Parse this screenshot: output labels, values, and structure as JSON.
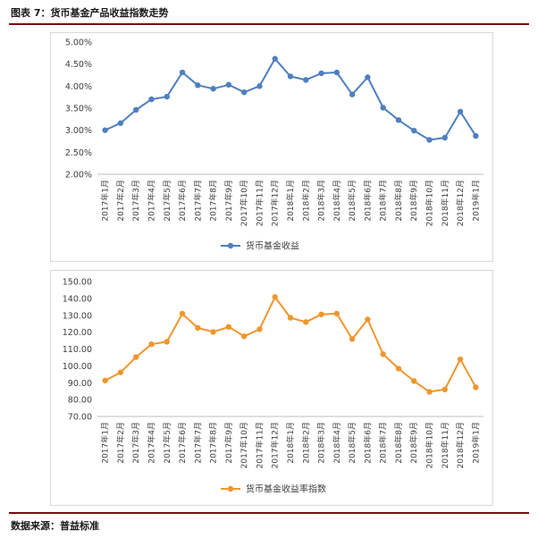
{
  "figure_title": "图表 7：货币基金产品收益指数走势",
  "source_text": "数据来源：普益标准",
  "chart_data": [
    {
      "type": "line",
      "categories": [
        "2017年1月",
        "2017年2月",
        "2017年3月",
        "2017年4月",
        "2017年5月",
        "2017年6月",
        "2017年7月",
        "2017年8月",
        "2017年9月",
        "2017年10月",
        "2017年11月",
        "2017年12月",
        "2018年1月",
        "2018年2月",
        "2018年3月",
        "2018年4月",
        "2018年5月",
        "2018年6月",
        "2018年7月",
        "2018年8月",
        "2018年9月",
        "2018年10月",
        "2018年11月",
        "2018年12月",
        "2019年1月"
      ],
      "series": [
        {
          "name": "货币基金收益",
          "values": [
            3.0,
            3.16,
            3.46,
            3.7,
            3.76,
            4.31,
            4.02,
            3.94,
            4.03,
            3.86,
            4.0,
            4.62,
            4.22,
            4.14,
            4.29,
            4.31,
            3.81,
            4.2,
            3.51,
            3.23,
            2.99,
            2.78,
            2.83,
            3.42,
            2.87
          ]
        }
      ],
      "ylim": [
        2.0,
        5.0
      ],
      "yticks": [
        "2.00%",
        "2.50%",
        "3.00%",
        "3.50%",
        "4.00%",
        "4.50%",
        "5.00%"
      ],
      "color": "#4f7fbf",
      "legend_position": "bottom",
      "grid": false
    },
    {
      "type": "line",
      "categories": [
        "2017年1月",
        "2017年2月",
        "2017年3月",
        "2017年4月",
        "2017年5月",
        "2017年6月",
        "2017年7月",
        "2017年8月",
        "2017年9月",
        "2017年10月",
        "2017年11月",
        "2017年12月",
        "2018年1月",
        "2018年2月",
        "2018年3月",
        "2018年4月",
        "2018年5月",
        "2018年6月",
        "2018年7月",
        "2018年8月",
        "2018年9月",
        "2018年10月",
        "2018年11月",
        "2018年12月",
        "2019年1月"
      ],
      "series": [
        {
          "name": "货币基金收益率指数",
          "values": [
            91.3,
            96.1,
            105.2,
            112.8,
            114.3,
            130.9,
            122.5,
            120.1,
            123.1,
            117.5,
            121.7,
            140.8,
            128.5,
            126.0,
            130.5,
            131.0,
            115.9,
            127.5,
            106.9,
            98.4,
            91.0,
            84.6,
            86.0,
            103.9,
            87.3
          ]
        }
      ],
      "ylim": [
        70,
        150
      ],
      "yticks": [
        "70.00",
        "80.00",
        "90.00",
        "100.00",
        "110.00",
        "120.00",
        "130.00",
        "140.00",
        "150.00"
      ],
      "color": "#f0962e",
      "legend_position": "bottom",
      "grid": false
    }
  ]
}
